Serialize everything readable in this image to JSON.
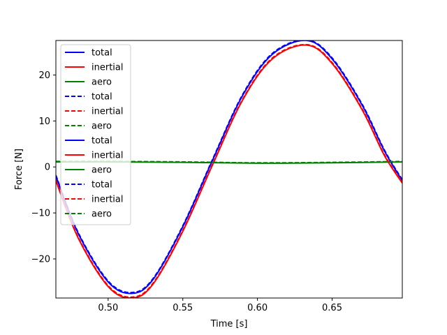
{
  "chart_data": {
    "type": "line",
    "xlabel": "Time [s]",
    "ylabel": "Force [N]",
    "xlim": [
      0.465,
      0.697
    ],
    "ylim": [
      -28.5,
      27.5
    ],
    "xticks": [
      0.5,
      0.55,
      0.6,
      0.65
    ],
    "xtick_labels": [
      "0.50",
      "0.55",
      "0.60",
      "0.65"
    ],
    "yticks": [
      -20,
      -10,
      0,
      10,
      20
    ],
    "ytick_labels": [
      "−20",
      "−10",
      "0",
      "10",
      "20"
    ],
    "grid": false,
    "legend_position": "upper-left",
    "legend": [
      {
        "label": "total",
        "color": "#0000ff",
        "style": "solid"
      },
      {
        "label": "inertial",
        "color": "#ff0000",
        "style": "solid"
      },
      {
        "label": "aero",
        "color": "#008000",
        "style": "solid"
      },
      {
        "label": "total",
        "color": "#0000ff",
        "style": "dashed"
      },
      {
        "label": "inertial",
        "color": "#ff0000",
        "style": "dashed"
      },
      {
        "label": "aero",
        "color": "#008000",
        "style": "dashed"
      },
      {
        "label": "total",
        "color": "#0000ff",
        "style": "solid"
      },
      {
        "label": "inertial",
        "color": "#ff0000",
        "style": "solid"
      },
      {
        "label": "aero",
        "color": "#008000",
        "style": "solid"
      },
      {
        "label": "total",
        "color": "#0000ff",
        "style": "dashed"
      },
      {
        "label": "inertial",
        "color": "#ff0000",
        "style": "dashed"
      },
      {
        "label": "aero",
        "color": "#008000",
        "style": "dashed"
      }
    ],
    "series": [
      {
        "color": "#0000ff",
        "style": "solid",
        "x": [
          0.465,
          0.48,
          0.5,
          0.516,
          0.53,
          0.55,
          0.57,
          0.59,
          0.61,
          0.633,
          0.65,
          0.67,
          0.685,
          0.697
        ],
        "y": [
          -2.0,
          -14.5,
          -25.0,
          -27.5,
          -24.5,
          -13.0,
          1.5,
          15.5,
          24.5,
          27.5,
          23.5,
          13.5,
          3.5,
          -3.0
        ]
      },
      {
        "color": "#ff0000",
        "style": "solid",
        "x": [
          0.465,
          0.48,
          0.5,
          0.516,
          0.53,
          0.55,
          0.57,
          0.59,
          0.61,
          0.633,
          0.65,
          0.67,
          0.685,
          0.697
        ],
        "y": [
          -3.0,
          -15.5,
          -26.0,
          -28.5,
          -25.5,
          -14.0,
          0.5,
          14.5,
          23.5,
          26.5,
          22.5,
          12.5,
          2.5,
          -3.5
        ]
      },
      {
        "color": "#008000",
        "style": "solid",
        "x": [
          0.465,
          0.5,
          0.55,
          0.6,
          0.65,
          0.697
        ],
        "y": [
          1.1,
          1.1,
          1.0,
          0.8,
          0.9,
          1.1
        ]
      },
      {
        "color": "#0000ff",
        "style": "dashed",
        "x": [
          0.465,
          0.48,
          0.5,
          0.516,
          0.53,
          0.55,
          0.57,
          0.59,
          0.61,
          0.633,
          0.65,
          0.67,
          0.685,
          0.697
        ],
        "y": [
          -1.8,
          -14.3,
          -24.8,
          -27.3,
          -24.3,
          -12.8,
          1.7,
          15.7,
          24.7,
          27.6,
          23.7,
          13.7,
          3.7,
          -2.8
        ]
      },
      {
        "color": "#ff0000",
        "style": "dashed",
        "x": [
          0.465,
          0.48,
          0.5,
          0.516,
          0.53,
          0.55,
          0.57,
          0.59,
          0.61,
          0.633,
          0.65,
          0.67,
          0.685,
          0.697
        ],
        "y": [
          -2.8,
          -15.3,
          -25.8,
          -28.3,
          -25.3,
          -13.8,
          0.7,
          14.7,
          23.7,
          26.6,
          22.7,
          12.7,
          2.7,
          -3.3
        ]
      },
      {
        "color": "#008000",
        "style": "dashed",
        "x": [
          0.465,
          0.5,
          0.55,
          0.6,
          0.65,
          0.697
        ],
        "y": [
          1.2,
          1.2,
          1.1,
          0.9,
          1.0,
          1.2
        ]
      }
    ]
  }
}
